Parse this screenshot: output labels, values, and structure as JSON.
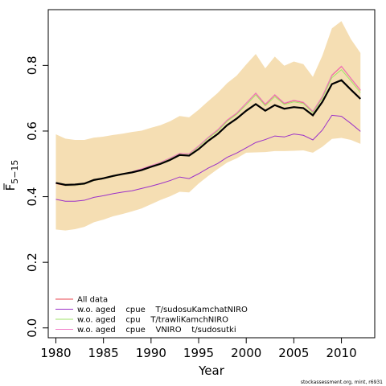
{
  "chart_data": {
    "type": "line",
    "xlabel": "Year",
    "ylabel_main": "F",
    "ylabel_sub": "5−15",
    "xlim": [
      1979.2,
      2013.5
    ],
    "ylim": [
      -0.03,
      0.97
    ],
    "xticks": [
      "1980",
      "1985",
      "1990",
      "1995",
      "2000",
      "2005",
      "2010"
    ],
    "yticks": [
      "0.0",
      "0.2",
      "0.4",
      "0.6",
      "0.8"
    ],
    "x": [
      1980,
      1981,
      1982,
      1983,
      1984,
      1985,
      1986,
      1987,
      1988,
      1989,
      1990,
      1991,
      1992,
      1993,
      1994,
      1995,
      1996,
      1997,
      1998,
      1999,
      2000,
      2001,
      2002,
      2003,
      2004,
      2005,
      2006,
      2007,
      2008,
      2009,
      2010,
      2011,
      2012
    ],
    "band": {
      "color": "#f5deb3",
      "upper": [
        0.59,
        0.577,
        0.573,
        0.573,
        0.58,
        0.583,
        0.588,
        0.592,
        0.597,
        0.601,
        0.61,
        0.618,
        0.63,
        0.646,
        0.642,
        0.665,
        0.691,
        0.716,
        0.746,
        0.769,
        0.803,
        0.835,
        0.791,
        0.827,
        0.799,
        0.812,
        0.804,
        0.765,
        0.83,
        0.913,
        0.935,
        0.88,
        0.838
      ],
      "lower": [
        0.3,
        0.297,
        0.301,
        0.308,
        0.322,
        0.33,
        0.34,
        0.347,
        0.355,
        0.364,
        0.377,
        0.39,
        0.401,
        0.415,
        0.413,
        0.44,
        0.463,
        0.484,
        0.504,
        0.517,
        0.534,
        0.535,
        0.536,
        0.539,
        0.539,
        0.54,
        0.541,
        0.534,
        0.552,
        0.576,
        0.579,
        0.573,
        0.561
      ]
    },
    "series": [
      {
        "name": "All data",
        "color": "#e8444f",
        "values": [
          0.44,
          0.434,
          0.434,
          0.438,
          0.449,
          0.455,
          0.461,
          0.468,
          0.475,
          0.484,
          0.494,
          0.504,
          0.517,
          0.532,
          0.53,
          0.554,
          0.58,
          0.603,
          0.633,
          0.654,
          0.685,
          0.715,
          0.681,
          0.71,
          0.684,
          0.693,
          0.687,
          0.659,
          0.705,
          0.77,
          0.797,
          0.76,
          0.724
        ]
      },
      {
        "name": "w.o. aged    cpue    T/sudosuKamchatNIRO",
        "color": "#9b30c9",
        "values": [
          0.392,
          0.386,
          0.386,
          0.389,
          0.398,
          0.403,
          0.409,
          0.414,
          0.418,
          0.425,
          0.432,
          0.44,
          0.449,
          0.46,
          0.455,
          0.47,
          0.487,
          0.501,
          0.52,
          0.533,
          0.549,
          0.565,
          0.574,
          0.585,
          0.582,
          0.591,
          0.587,
          0.573,
          0.603,
          0.648,
          0.645,
          0.623,
          0.599
        ]
      },
      {
        "name": "w.o. aged    cpu    T/trawliKamchNIRO",
        "color": "#9fe26a",
        "values": [
          0.442,
          0.434,
          0.434,
          0.438,
          0.449,
          0.455,
          0.461,
          0.468,
          0.475,
          0.484,
          0.494,
          0.504,
          0.517,
          0.532,
          0.53,
          0.552,
          0.578,
          0.6,
          0.63,
          0.651,
          0.68,
          0.71,
          0.677,
          0.705,
          0.681,
          0.689,
          0.684,
          0.656,
          0.7,
          0.763,
          0.787,
          0.753,
          0.717
        ]
      },
      {
        "name": "w.o. aged    cpue    VNIRO    t/sudosutki",
        "color": "#f07ac6",
        "values": [
          0.441,
          0.435,
          0.435,
          0.439,
          0.45,
          0.456,
          0.462,
          0.469,
          0.476,
          0.485,
          0.495,
          0.505,
          0.518,
          0.532,
          0.531,
          0.555,
          0.581,
          0.604,
          0.634,
          0.655,
          0.685,
          0.716,
          0.682,
          0.711,
          0.685,
          0.694,
          0.688,
          0.66,
          0.706,
          0.771,
          0.798,
          0.761,
          0.725
        ]
      }
    ],
    "main_line": {
      "color": "#000000",
      "values": [
        0.442,
        0.436,
        0.437,
        0.44,
        0.451,
        0.456,
        0.463,
        0.469,
        0.474,
        0.481,
        0.491,
        0.5,
        0.512,
        0.527,
        0.525,
        0.545,
        0.57,
        0.591,
        0.618,
        0.638,
        0.662,
        0.682,
        0.662,
        0.679,
        0.668,
        0.673,
        0.67,
        0.648,
        0.689,
        0.743,
        0.755,
        0.726,
        0.698
      ]
    },
    "legend_placement": "bottom-left",
    "grid": false
  },
  "credit_text": "stockassessment.org, mint, r6931"
}
